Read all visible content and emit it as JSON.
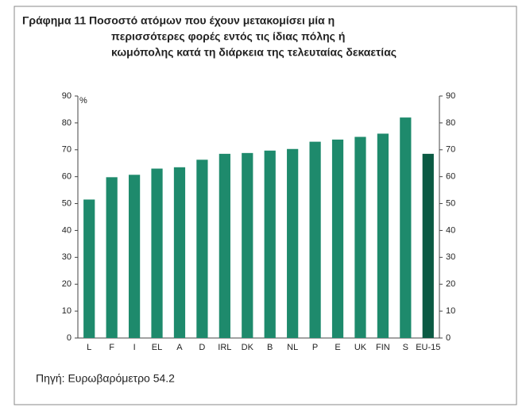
{
  "chart_data": {
    "type": "bar",
    "title": [
      "Γράφημα 11 Ποσοστό ατόμων που έχουν μετακομίσει μία η",
      "περισσότερες φορές εντός τις ίδιας πόλης ή",
      "κωμόπολης κατά τη διάρκεια της τελευταίας δεκαετίας"
    ],
    "y_label": "%",
    "source": "Πηγή: Ευρωβαρόμετρο 54.2",
    "categories": [
      "L",
      "F",
      "I",
      "EL",
      "A",
      "D",
      "IRL",
      "DK",
      "B",
      "NL",
      "P",
      "E",
      "UK",
      "FIN",
      "S",
      "EU-15"
    ],
    "values": [
      51.5,
      59.8,
      60.7,
      63,
      63.5,
      66.3,
      68.5,
      68.8,
      69.7,
      70.3,
      73,
      73.8,
      74.8,
      76,
      82,
      68.5
    ],
    "colors": [
      "#1e8a6c",
      "#1e8a6c",
      "#1e8a6c",
      "#1e8a6c",
      "#1e8a6c",
      "#1e8a6c",
      "#1e8a6c",
      "#1e8a6c",
      "#1e8a6c",
      "#1e8a6c",
      "#1e8a6c",
      "#1e8a6c",
      "#1e8a6c",
      "#1e8a6c",
      "#1e8a6c",
      "#0b5a43"
    ],
    "ylim": [
      0,
      90
    ],
    "yticks": [
      0,
      10,
      20,
      30,
      40,
      50,
      60,
      70,
      80,
      90
    ],
    "y2lim": [
      0,
      90
    ],
    "y2ticks": [
      0,
      10,
      20,
      30,
      40,
      50,
      60,
      70,
      80,
      90
    ],
    "grid": false
  }
}
